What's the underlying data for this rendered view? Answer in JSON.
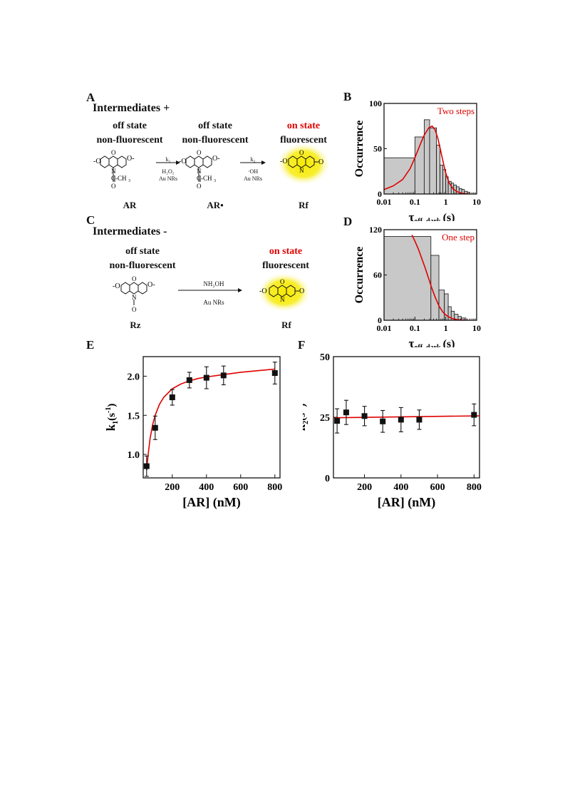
{
  "panels": {
    "A": {
      "letter": "A",
      "heading": "Intermediates +",
      "states": [
        {
          "top": "off state",
          "bottom": "non-fluorescent",
          "name": "AR"
        },
        {
          "top": "off state",
          "bottom": "non-fluorescent",
          "name": "AR•"
        },
        {
          "top": "on state",
          "bottom": "fluorescent",
          "name": "Rf"
        }
      ],
      "step1": {
        "rate": "k₁",
        "reagent": "H₂O₂",
        "catalyst": "Au NRs"
      },
      "step2": {
        "rate": "k₂",
        "reagent": "·OH",
        "catalyst": "Au NRs"
      }
    },
    "C": {
      "letter": "C",
      "heading": "Intermediates -",
      "states": [
        {
          "top": "off state",
          "bottom": "non-fluorescent",
          "name": "Rz"
        },
        {
          "top": "on state",
          "bottom": "fluorescent",
          "name": "Rf"
        }
      ],
      "step": {
        "reagent": "NH₂OH",
        "catalyst": "Au NRs"
      }
    },
    "B": {
      "letter": "B"
    },
    "D": {
      "letter": "D"
    },
    "E": {
      "letter": "E"
    },
    "F": {
      "letter": "F"
    }
  },
  "colors": {
    "fit": "#e00000",
    "bar": "#c8c8c8",
    "glow": "#f5e400"
  },
  "chart_data": [
    {
      "id": "B",
      "type": "bar",
      "xscale": "log",
      "xlim": [
        0.01,
        10
      ],
      "ylim": [
        0,
        100
      ],
      "xticks": [
        0.01,
        0.1,
        1,
        10
      ],
      "xticklabels": [
        "0.01",
        "0.1",
        "1",
        "10"
      ],
      "yticks": [
        0,
        50,
        100
      ],
      "xlabel": "τ",
      "xlabel_sub": "off, dark",
      "xlabel_unit": "(s)",
      "ylabel": "Occurrence",
      "annotation": "Two steps",
      "bins": [
        {
          "x0": 0.01,
          "x1": 0.1,
          "count": 40
        },
        {
          "x0": 0.1,
          "x1": 0.2,
          "count": 63
        },
        {
          "x0": 0.2,
          "x1": 0.3,
          "count": 82
        },
        {
          "x0": 0.3,
          "x1": 0.5,
          "count": 73
        },
        {
          "x0": 0.5,
          "x1": 0.65,
          "count": 54
        },
        {
          "x0": 0.65,
          "x1": 0.8,
          "count": 32
        },
        {
          "x0": 0.8,
          "x1": 1.0,
          "count": 27
        },
        {
          "x0": 1.0,
          "x1": 1.2,
          "count": 19
        },
        {
          "x0": 1.2,
          "x1": 1.5,
          "count": 14
        },
        {
          "x0": 1.5,
          "x1": 1.8,
          "count": 12
        },
        {
          "x0": 1.8,
          "x1": 2.2,
          "count": 10
        },
        {
          "x0": 2.2,
          "x1": 2.7,
          "count": 8
        },
        {
          "x0": 2.7,
          "x1": 3.3,
          "count": 6
        },
        {
          "x0": 3.3,
          "x1": 4.0,
          "count": 5
        },
        {
          "x0": 4.0,
          "x1": 5.0,
          "count": 3
        },
        {
          "x0": 5.0,
          "x1": 6.0,
          "count": 2
        }
      ],
      "fit": {
        "x": [
          0.01,
          0.02,
          0.04,
          0.07,
          0.1,
          0.15,
          0.2,
          0.28,
          0.36,
          0.45,
          0.55,
          0.7,
          0.85,
          1.0,
          1.3,
          1.7,
          2.2,
          3.0,
          4.0,
          6.0
        ],
        "y": [
          5,
          9,
          16,
          28,
          40,
          55,
          65,
          73,
          75,
          71,
          62,
          46,
          33,
          23,
          12,
          6,
          3,
          1,
          0.5,
          0
        ]
      }
    },
    {
      "id": "D",
      "type": "bar",
      "xscale": "log",
      "xlim": [
        0.01,
        10
      ],
      "ylim": [
        0,
        120
      ],
      "xticks": [
        0.01,
        0.1,
        1,
        10
      ],
      "xticklabels": [
        "0.01",
        "0.1",
        "1",
        "10"
      ],
      "yticks": [
        0,
        60,
        120
      ],
      "xlabel": "τ",
      "xlabel_sub": "off, dark",
      "xlabel_unit": "(s)",
      "ylabel": "Occurrence",
      "annotation": "One step",
      "bins": [
        {
          "x0": 0.01,
          "x1": 0.33,
          "count": 111
        },
        {
          "x0": 0.33,
          "x1": 0.6,
          "count": 86
        },
        {
          "x0": 0.6,
          "x1": 0.9,
          "count": 40
        },
        {
          "x0": 0.9,
          "x1": 1.2,
          "count": 35
        },
        {
          "x0": 1.2,
          "x1": 1.5,
          "count": 18
        },
        {
          "x0": 1.5,
          "x1": 1.9,
          "count": 12
        },
        {
          "x0": 1.9,
          "x1": 2.5,
          "count": 8
        },
        {
          "x0": 2.5,
          "x1": 3.2,
          "count": 5
        },
        {
          "x0": 3.2,
          "x1": 4.5,
          "count": 3
        }
      ],
      "fit": {
        "x": [
          0.08,
          0.1,
          0.13,
          0.17,
          0.22,
          0.28,
          0.35,
          0.45,
          0.6,
          0.8,
          1.0,
          1.3,
          1.7,
          2.2,
          3.0,
          4.0,
          5.5
        ],
        "y": [
          113,
          105,
          94,
          81,
          68,
          55,
          43,
          31,
          19,
          11,
          7,
          4,
          2,
          1,
          0.5,
          0.2,
          0
        ]
      }
    },
    {
      "id": "E",
      "type": "scatter",
      "xlim": [
        30,
        830
      ],
      "ylim": [
        0.7,
        2.25
      ],
      "xticks": [
        200,
        400,
        600,
        800
      ],
      "yticks": [
        1.0,
        1.5,
        2.0
      ],
      "yticklabels": [
        "1.0",
        "1.5",
        "2.0"
      ],
      "xlabel": "[AR] (nM)",
      "ylabel": "k",
      "ylabel_sub": "1",
      "ylabel_unit": "(s",
      "ylabel_sup": "-1",
      "ylabel_close": ")",
      "points": [
        {
          "x": 50,
          "y": 0.85,
          "err": 0.13
        },
        {
          "x": 100,
          "y": 1.34,
          "err": 0.15
        },
        {
          "x": 200,
          "y": 1.73,
          "err": 0.1
        },
        {
          "x": 300,
          "y": 1.95,
          "err": 0.1
        },
        {
          "x": 400,
          "y": 1.98,
          "err": 0.14
        },
        {
          "x": 500,
          "y": 2.01,
          "err": 0.12
        },
        {
          "x": 800,
          "y": 2.04,
          "err": 0.14
        }
      ],
      "fit": {
        "x": [
          50,
          60,
          70,
          85,
          100,
          125,
          150,
          200,
          250,
          300,
          350,
          400,
          500,
          600,
          700,
          800
        ],
        "y": [
          0.8,
          1.02,
          1.2,
          1.38,
          1.5,
          1.64,
          1.73,
          1.84,
          1.9,
          1.94,
          1.97,
          1.99,
          2.02,
          2.05,
          2.07,
          2.09
        ]
      }
    },
    {
      "id": "F",
      "type": "scatter",
      "xlim": [
        30,
        830
      ],
      "ylim": [
        0,
        50
      ],
      "xticks": [
        200,
        400,
        600,
        800
      ],
      "yticks": [
        0,
        25,
        50
      ],
      "xlabel": "[AR] (nM)",
      "ylabel": "k",
      "ylabel_sub": "2",
      "ylabel_unit": "(s",
      "ylabel_sup": "-1",
      "ylabel_close": ")",
      "points": [
        {
          "x": 50,
          "y": 23.5,
          "err": 5.0
        },
        {
          "x": 100,
          "y": 27.0,
          "err": 5.0
        },
        {
          "x": 200,
          "y": 25.5,
          "err": 4.0
        },
        {
          "x": 300,
          "y": 23.3,
          "err": 4.5
        },
        {
          "x": 400,
          "y": 24.0,
          "err": 5.0
        },
        {
          "x": 500,
          "y": 24.0,
          "err": 4.0
        },
        {
          "x": 800,
          "y": 26.0,
          "err": 4.5
        }
      ],
      "fit": {
        "x": [
          30,
          830
        ],
        "y": [
          24.8,
          25.6
        ]
      }
    }
  ]
}
